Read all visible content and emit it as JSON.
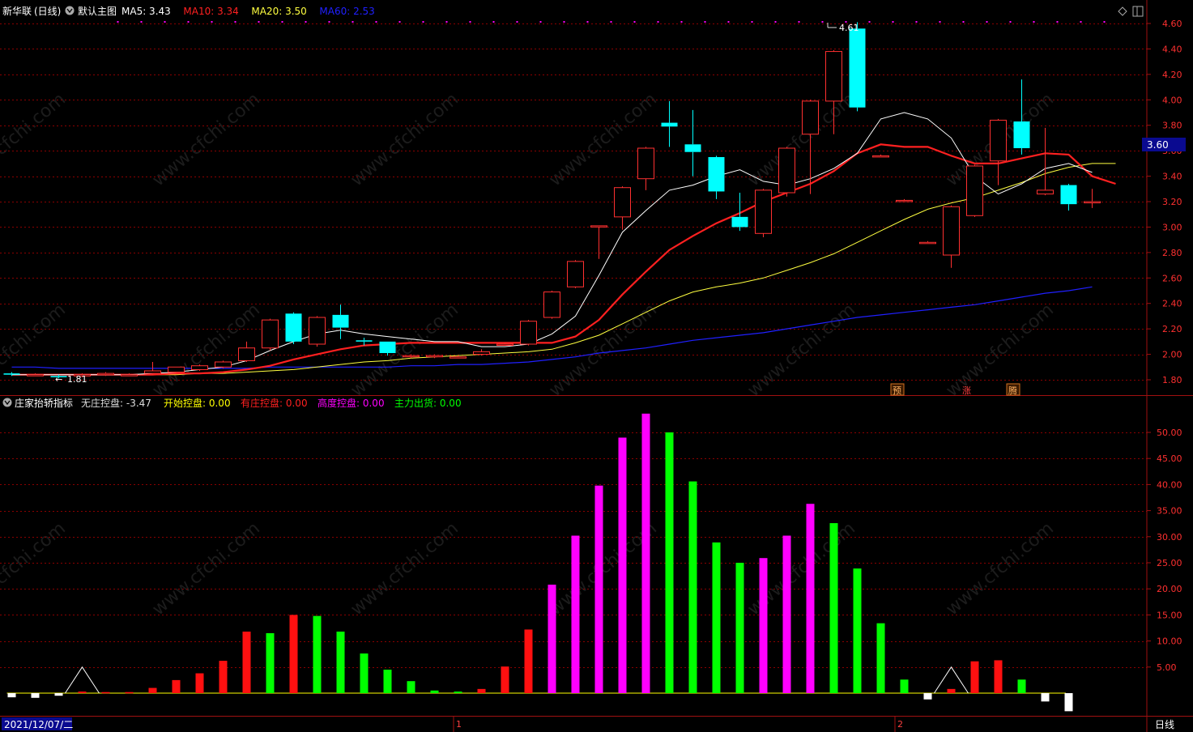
{
  "header": {
    "stock_name": "新华联",
    "period": "(日线)",
    "template": "默认主图",
    "ma": [
      {
        "label": "MA5:",
        "value": "3.43",
        "color": "#ffffff"
      },
      {
        "label": "MA10:",
        "value": "3.34",
        "color": "#ff2020"
      },
      {
        "label": "MA20:",
        "value": "3.50",
        "color": "#ffff40"
      },
      {
        "label": "MA60:",
        "value": "2.53",
        "color": "#2020ff"
      }
    ]
  },
  "indicator": {
    "name": "庄家抬轿指标",
    "items": [
      {
        "label": "无庄控盘:",
        "value": "-3.47",
        "color": "#dddddd"
      },
      {
        "label": "开始控盘:",
        "value": "0.00",
        "color": "#ffff00"
      },
      {
        "label": "有庄控盘:",
        "value": "0.00",
        "color": "#ff2020"
      },
      {
        "label": "高度控盘:",
        "value": "0.00",
        "color": "#ff00ff"
      },
      {
        "label": "主力出货:",
        "value": "0.00",
        "color": "#00ff00"
      }
    ]
  },
  "colors": {
    "up": "#ff3030",
    "down": "#00ffff",
    "grid": "#8b0000",
    "axis_text": "#ff3030"
  },
  "price_axis": {
    "ticks": [
      "4.60",
      "4.40",
      "4.20",
      "4.00",
      "3.80",
      "3.60",
      "3.40",
      "3.20",
      "3.00",
      "2.80",
      "2.60",
      "2.40",
      "2.20",
      "2.00",
      "1.80"
    ],
    "current_price": "3.60"
  },
  "annotations": {
    "high": "4.61",
    "low": "1.81",
    "markers": [
      "预",
      "涨",
      "腾"
    ]
  },
  "footer": {
    "date": "2021/12/07/二",
    "month_marks": [
      "1",
      "2"
    ],
    "period_label": "日线"
  },
  "watermark": "www.cfchi.com",
  "chart_data": [
    {
      "type": "candlestick",
      "ylim": [
        1.75,
        4.65
      ],
      "candles": [
        {
          "o": 1.85,
          "c": 1.84,
          "h": 1.86,
          "l": 1.83
        },
        {
          "o": 1.84,
          "c": 1.84,
          "h": 1.85,
          "l": 1.83
        },
        {
          "o": 1.83,
          "c": 1.82,
          "h": 1.84,
          "l": 1.81
        },
        {
          "o": 1.83,
          "c": 1.84,
          "h": 1.85,
          "l": 1.82
        },
        {
          "o": 1.84,
          "c": 1.85,
          "h": 1.86,
          "l": 1.83
        },
        {
          "o": 1.84,
          "c": 1.84,
          "h": 1.85,
          "l": 1.83
        },
        {
          "o": 1.85,
          "c": 1.87,
          "h": 1.94,
          "l": 1.84
        },
        {
          "o": 1.86,
          "c": 1.9,
          "h": 1.9,
          "l": 1.85
        },
        {
          "o": 1.88,
          "c": 1.91,
          "h": 1.92,
          "l": 1.87
        },
        {
          "o": 1.9,
          "c": 1.94,
          "h": 1.95,
          "l": 1.89
        },
        {
          "o": 1.95,
          "c": 2.05,
          "h": 2.1,
          "l": 1.94
        },
        {
          "o": 2.05,
          "c": 2.27,
          "h": 2.28,
          "l": 2.03
        },
        {
          "o": 2.32,
          "c": 2.1,
          "h": 2.33,
          "l": 2.08
        },
        {
          "o": 2.08,
          "c": 2.29,
          "h": 2.3,
          "l": 2.06
        },
        {
          "o": 2.31,
          "c": 2.21,
          "h": 2.39,
          "l": 2.12
        },
        {
          "o": 2.11,
          "c": 2.1,
          "h": 2.13,
          "l": 2.07
        },
        {
          "o": 2.1,
          "c": 2.01,
          "h": 2.1,
          "l": 1.99
        },
        {
          "o": 1.99,
          "c": 1.99,
          "h": 2.0,
          "l": 1.97
        },
        {
          "o": 1.98,
          "c": 1.99,
          "h": 2.0,
          "l": 1.97
        },
        {
          "o": 1.98,
          "c": 1.98,
          "h": 1.99,
          "l": 1.97
        },
        {
          "o": 2.0,
          "c": 2.02,
          "h": 2.04,
          "l": 1.99
        },
        {
          "o": 2.08,
          "c": 2.08,
          "h": 2.09,
          "l": 2.07
        },
        {
          "o": 2.08,
          "c": 2.26,
          "h": 2.27,
          "l": 2.07
        },
        {
          "o": 2.29,
          "c": 2.49,
          "h": 2.5,
          "l": 2.28
        },
        {
          "o": 2.53,
          "c": 2.73,
          "h": 2.74,
          "l": 2.52
        },
        {
          "o": 3.01,
          "c": 3.01,
          "h": 3.01,
          "l": 2.75
        },
        {
          "o": 3.08,
          "c": 3.31,
          "h": 3.32,
          "l": 2.98
        },
        {
          "o": 3.38,
          "c": 3.62,
          "h": 3.63,
          "l": 3.29
        },
        {
          "o": 3.82,
          "c": 3.79,
          "h": 3.99,
          "l": 3.63
        },
        {
          "o": 3.65,
          "c": 3.59,
          "h": 3.92,
          "l": 3.4
        },
        {
          "o": 3.55,
          "c": 3.28,
          "h": 3.56,
          "l": 3.22
        },
        {
          "o": 3.08,
          "c": 3.0,
          "h": 3.27,
          "l": 2.97
        },
        {
          "o": 2.95,
          "c": 3.29,
          "h": 3.3,
          "l": 2.92
        },
        {
          "o": 3.27,
          "c": 3.62,
          "h": 3.63,
          "l": 3.24
        },
        {
          "o": 3.73,
          "c": 3.99,
          "h": 4.0,
          "l": 3.26
        },
        {
          "o": 3.99,
          "c": 4.38,
          "h": 4.39,
          "l": 3.73
        },
        {
          "o": 4.56,
          "c": 3.94,
          "h": 4.61,
          "l": 3.91
        },
        {
          "o": 3.56,
          "c": 3.56,
          "h": 3.57,
          "l": 3.55
        },
        {
          "o": 3.21,
          "c": 3.21,
          "h": 3.22,
          "l": 3.2
        },
        {
          "o": 2.88,
          "c": 2.88,
          "h": 2.89,
          "l": 2.87
        },
        {
          "o": 2.78,
          "c": 3.16,
          "h": 3.17,
          "l": 2.68
        },
        {
          "o": 3.09,
          "c": 3.48,
          "h": 3.49,
          "l": 3.08
        },
        {
          "o": 3.52,
          "c": 3.84,
          "h": 3.85,
          "l": 3.33
        },
        {
          "o": 3.83,
          "c": 3.62,
          "h": 4.16,
          "l": 3.57
        },
        {
          "o": 3.26,
          "c": 3.29,
          "h": 3.78,
          "l": 3.25
        },
        {
          "o": 3.33,
          "c": 3.18,
          "h": 3.34,
          "l": 3.13
        },
        {
          "o": 3.2,
          "c": 3.2,
          "h": 3.3,
          "l": 3.15
        }
      ],
      "ma5": [
        1.84,
        1.84,
        1.84,
        1.84,
        1.84,
        1.84,
        1.85,
        1.86,
        1.88,
        1.9,
        1.95,
        2.03,
        2.1,
        2.16,
        2.19,
        2.16,
        2.14,
        2.12,
        2.1,
        2.1,
        2.06,
        2.06,
        2.08,
        2.16,
        2.3,
        2.62,
        2.96,
        3.13,
        3.29,
        3.33,
        3.4,
        3.45,
        3.36,
        3.33,
        3.38,
        3.46,
        3.58,
        3.85,
        3.9,
        3.85,
        3.7,
        3.4,
        3.26,
        3.34,
        3.46,
        3.5,
        3.43
      ],
      "ma10": [
        1.84,
        1.84,
        1.84,
        1.84,
        1.84,
        1.84,
        1.84,
        1.85,
        1.85,
        1.86,
        1.88,
        1.91,
        1.96,
        2.0,
        2.04,
        2.07,
        2.08,
        2.09,
        2.09,
        2.09,
        2.09,
        2.09,
        2.09,
        2.09,
        2.14,
        2.27,
        2.47,
        2.65,
        2.82,
        2.93,
        3.03,
        3.11,
        3.2,
        3.27,
        3.34,
        3.44,
        3.58,
        3.65,
        3.63,
        3.63,
        3.56,
        3.5,
        3.5,
        3.54,
        3.58,
        3.57,
        3.4,
        3.34
      ],
      "ma20": [
        1.84,
        1.84,
        1.84,
        1.84,
        1.84,
        1.84,
        1.84,
        1.84,
        1.85,
        1.85,
        1.86,
        1.87,
        1.88,
        1.9,
        1.92,
        1.94,
        1.95,
        1.97,
        1.98,
        1.99,
        2.0,
        2.01,
        2.02,
        2.04,
        2.09,
        2.15,
        2.24,
        2.33,
        2.42,
        2.49,
        2.53,
        2.56,
        2.6,
        2.66,
        2.72,
        2.79,
        2.88,
        2.97,
        3.06,
        3.14,
        3.19,
        3.23,
        3.29,
        3.35,
        3.42,
        3.47,
        3.5,
        3.5
      ],
      "ma60": [
        1.9,
        1.9,
        1.89,
        1.89,
        1.89,
        1.89,
        1.89,
        1.89,
        1.89,
        1.89,
        1.89,
        1.9,
        1.9,
        1.9,
        1.9,
        1.9,
        1.9,
        1.91,
        1.91,
        1.92,
        1.92,
        1.93,
        1.94,
        1.96,
        1.98,
        2.01,
        2.03,
        2.05,
        2.08,
        2.11,
        2.13,
        2.15,
        2.17,
        2.2,
        2.23,
        2.26,
        2.29,
        2.31,
        2.33,
        2.35,
        2.37,
        2.39,
        2.42,
        2.45,
        2.48,
        2.5,
        2.53
      ]
    },
    {
      "type": "bar",
      "ylim": [
        -4,
        55
      ],
      "ticks": [
        "50.00",
        "45.00",
        "40.00",
        "35.00",
        "30.00",
        "25.00",
        "20.00",
        "15.00",
        "10.00",
        "5.00"
      ],
      "values": [
        -0.8,
        -0.9,
        -0.5,
        0.3,
        0.2,
        0.2,
        1.0,
        2.5,
        3.8,
        6.2,
        11.8,
        11.5,
        15.0,
        14.8,
        11.8,
        7.6,
        4.5,
        2.3,
        0.5,
        0.3,
        0.8,
        5.1,
        12.2,
        20.8,
        30.2,
        39.8,
        49.0,
        53.6,
        50.0,
        40.6,
        28.9,
        25.0,
        25.9,
        30.2,
        36.3,
        32.6,
        23.9,
        13.4,
        2.6,
        -1.2,
        0.8,
        6.1,
        6.3,
        2.6,
        -1.6,
        -3.47
      ],
      "classes": [
        "none",
        "none",
        "none",
        "own",
        "own",
        "own",
        "own",
        "own",
        "own",
        "own",
        "own",
        "out",
        "own",
        "out",
        "out",
        "out",
        "out",
        "out",
        "out",
        "out",
        "own",
        "own",
        "own",
        "high",
        "high",
        "high",
        "high",
        "high",
        "out",
        "out",
        "out",
        "out",
        "high",
        "high",
        "high",
        "out",
        "out",
        "out",
        "out",
        "none",
        "own",
        "own",
        "own",
        "out",
        "none",
        "none"
      ],
      "line": [
        0,
        0,
        0,
        5.0,
        0,
        0,
        0,
        0,
        0,
        0,
        0,
        0,
        0,
        0,
        0,
        0,
        0,
        0,
        0,
        0,
        0,
        0,
        0,
        0,
        0,
        0,
        0,
        0,
        0,
        0,
        0,
        0,
        0,
        0,
        0,
        0,
        0,
        0,
        0,
        0,
        5.0,
        0,
        0,
        0,
        0,
        0
      ],
      "line_x_offset": 2
    }
  ]
}
